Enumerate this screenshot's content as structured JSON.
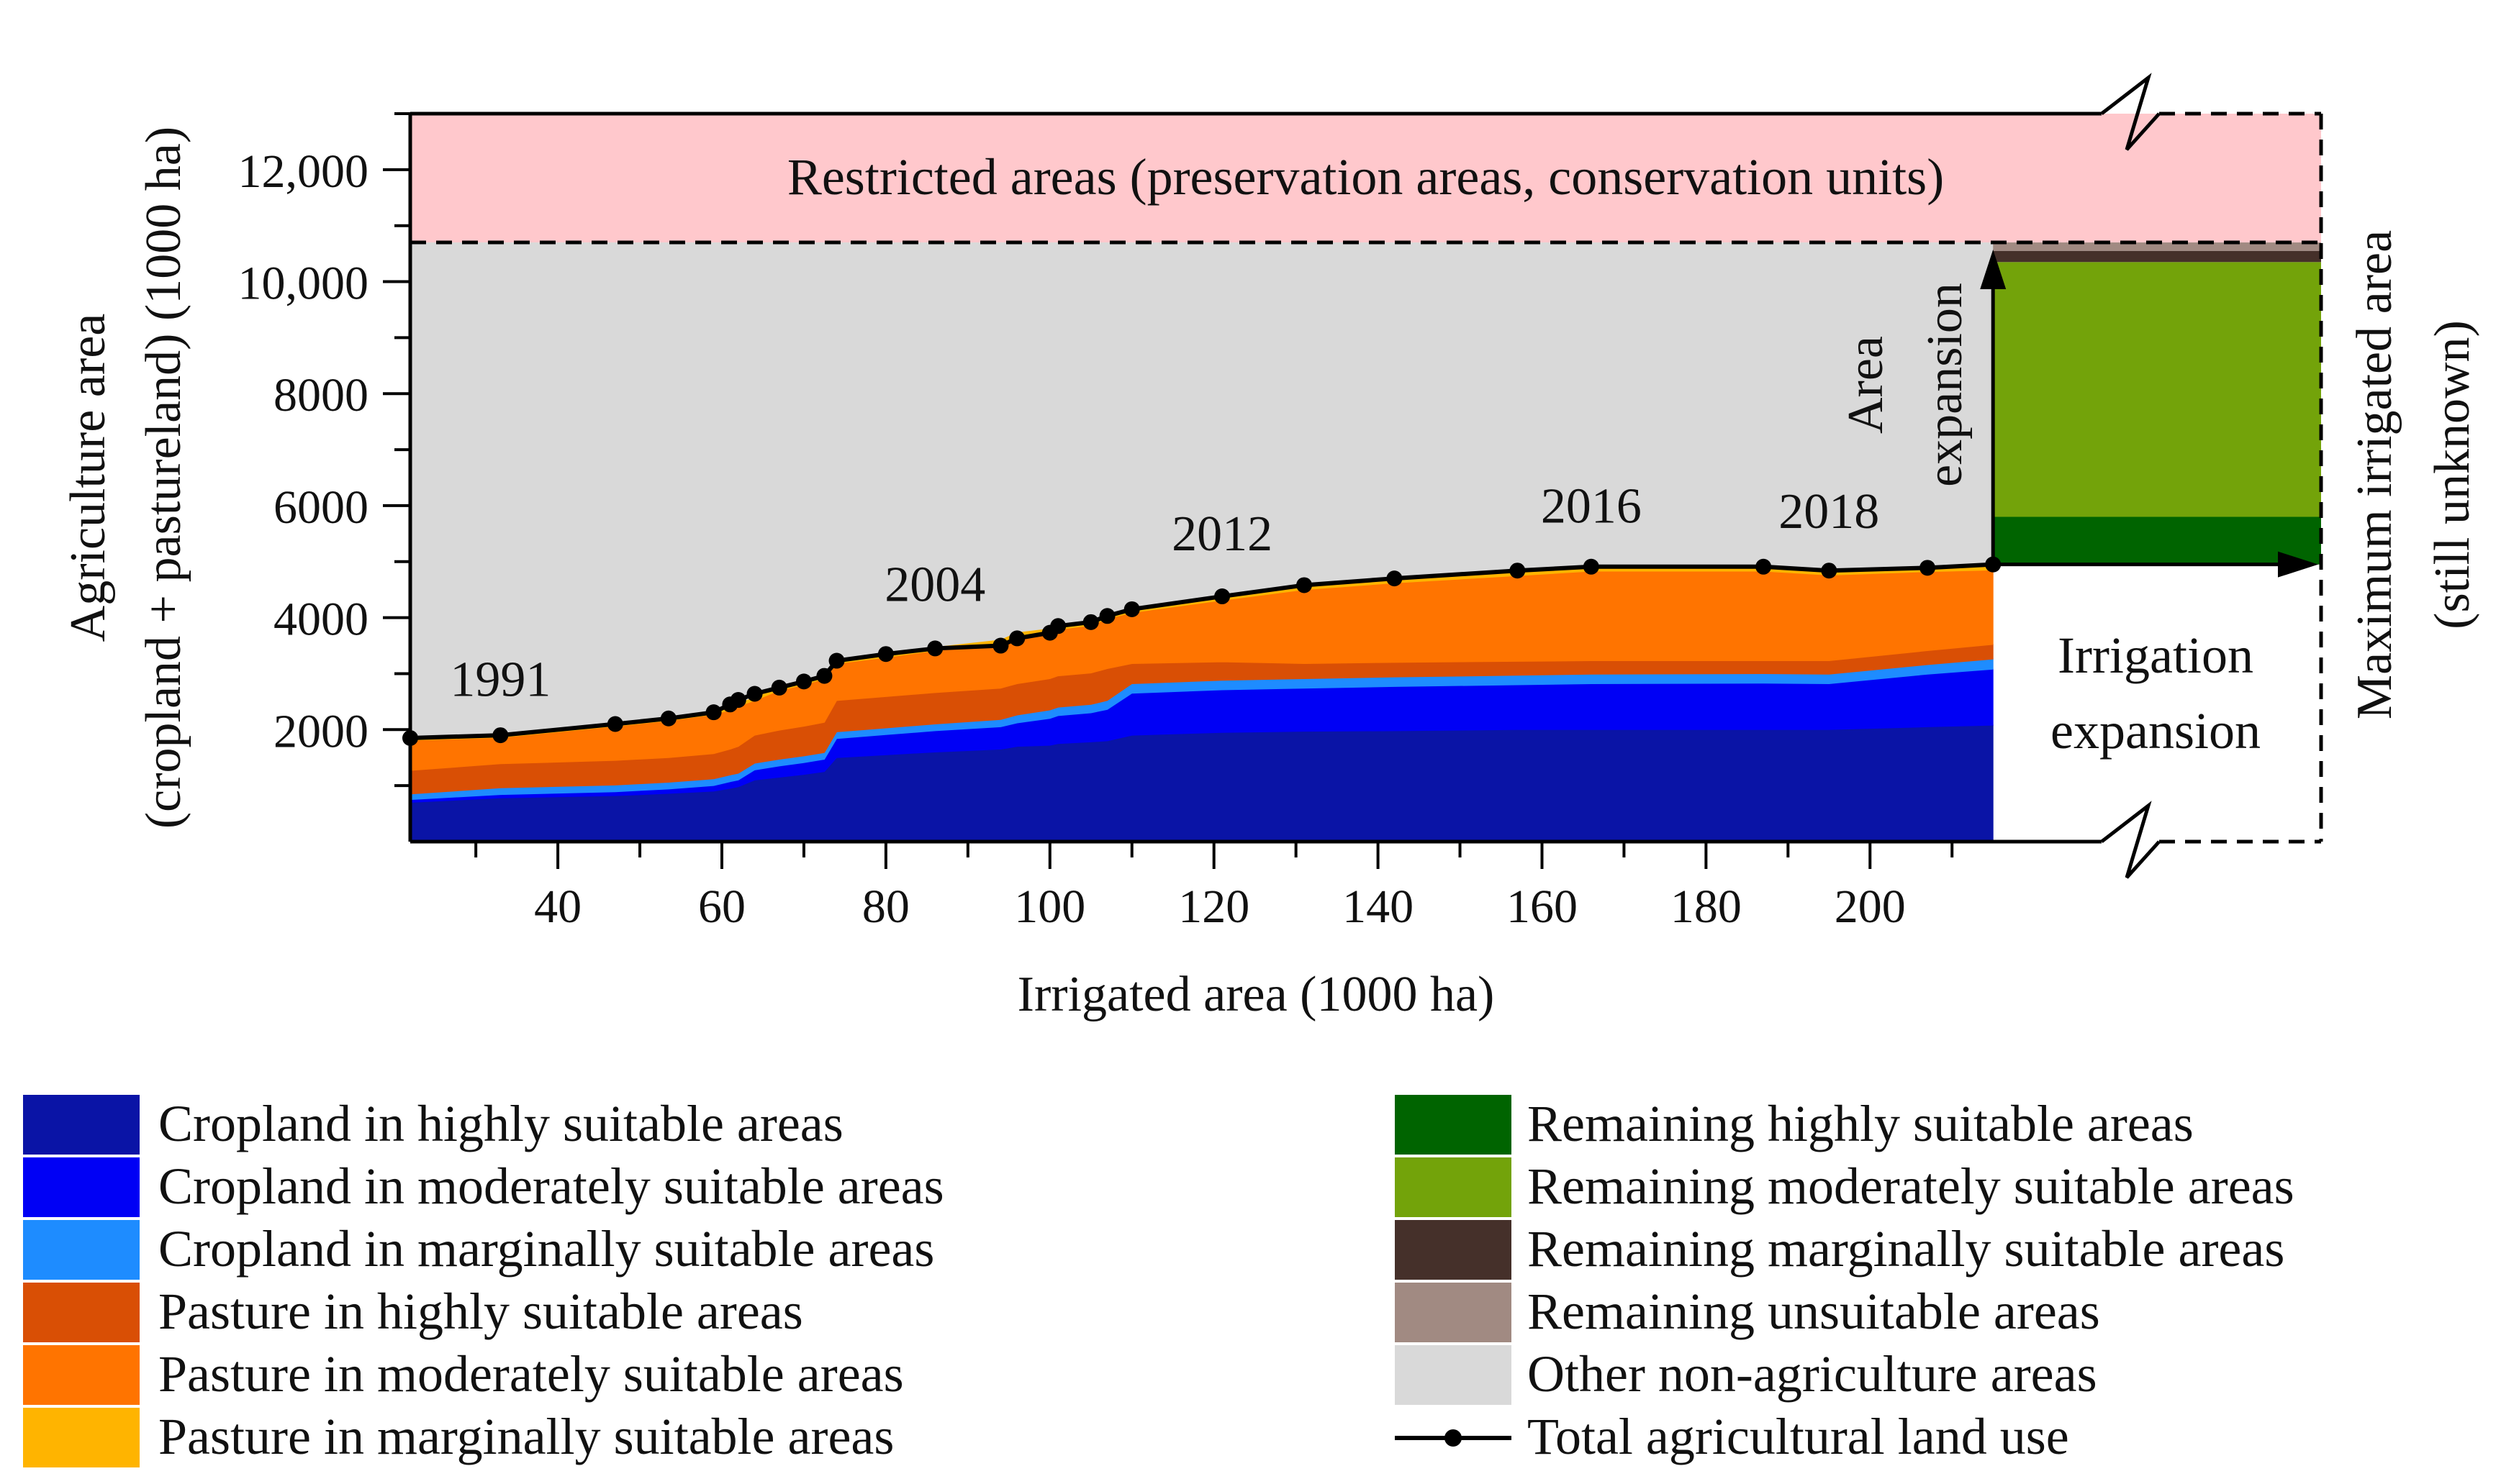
{
  "chart_data": {
    "type": "area",
    "xlabel": "Irrigated area (1000 ha)",
    "ylabel_line1": "Agriculture area",
    "ylabel_line2": "(cropland + pastureland) (1000 ha)",
    "xlim": [
      22,
      255
    ],
    "ylim": [
      0,
      13000
    ],
    "x_ticks": [
      40,
      60,
      80,
      100,
      120,
      140,
      160,
      180,
      200
    ],
    "y_ticks": [
      {
        "value": 2000,
        "label": "2000"
      },
      {
        "value": 4000,
        "label": "4000"
      },
      {
        "value": 6000,
        "label": "6000"
      },
      {
        "value": 8000,
        "label": "8000"
      },
      {
        "value": 10000,
        "label": "10,000"
      },
      {
        "value": 12000,
        "label": "12,000"
      }
    ],
    "restricted_threshold": 10700,
    "x": [
      22,
      33,
      47,
      53.5,
      59,
      61,
      62,
      64,
      67,
      70,
      72.5,
      74,
      80,
      86,
      94,
      96,
      100,
      101,
      105,
      107,
      110,
      121,
      131,
      142,
      157,
      166,
      187,
      195,
      207,
      215
    ],
    "series": [
      {
        "name": "Cropland in highly suitable areas",
        "color": "#0a14a6",
        "values": [
          700,
          780,
          820,
          860,
          900,
          950,
          980,
          1100,
          1150,
          1200,
          1250,
          1500,
          1550,
          1600,
          1650,
          1700,
          1720,
          1750,
          1780,
          1800,
          1900,
          1950,
          1970,
          1980,
          2000,
          2000,
          2000,
          2000,
          2050,
          2080
        ]
      },
      {
        "name": "Cropland in moderately suitable areas",
        "color": "#0000f5",
        "values": [
          50,
          60,
          70,
          80,
          100,
          120,
          120,
          180,
          200,
          210,
          220,
          340,
          360,
          380,
          400,
          420,
          480,
          500,
          520,
          560,
          750,
          760,
          770,
          790,
          800,
          820,
          830,
          820,
          940,
          1000
        ]
      },
      {
        "name": "Cropland in marginally suitable areas",
        "color": "#1e8cff",
        "values": [
          100,
          120,
          120,
          120,
          120,
          120,
          120,
          120,
          120,
          120,
          120,
          120,
          120,
          120,
          130,
          140,
          150,
          150,
          150,
          160,
          170,
          170,
          170,
          170,
          170,
          170,
          170,
          170,
          170,
          180
        ]
      },
      {
        "name": "Pasture in highly suitable areas",
        "color": "#d94f05",
        "values": [
          420,
          430,
          440,
          440,
          450,
          460,
          480,
          500,
          520,
          530,
          540,
          560,
          560,
          560,
          560,
          560,
          560,
          560,
          560,
          570,
          360,
          330,
          270,
          260,
          250,
          240,
          230,
          240,
          250,
          260
        ]
      },
      {
        "name": "Pasture in moderately suitable areas",
        "color": "#ff7400",
        "values": [
          540,
          470,
          610,
          660,
          700,
          700,
          720,
          620,
          710,
          740,
          780,
          660,
          700,
          750,
          800,
          850,
          830,
          830,
          850,
          890,
          910,
          1100,
          1320,
          1420,
          1530,
          1600,
          1600,
          1530,
          1410,
          1330
        ]
      },
      {
        "name": "Pasture in marginally suitable areas",
        "color": "#ffb400",
        "values": [
          40,
          40,
          40,
          40,
          40,
          50,
          50,
          50,
          50,
          50,
          50,
          50,
          60,
          60,
          60,
          60,
          60,
          60,
          60,
          60,
          60,
          70,
          80,
          80,
          80,
          80,
          80,
          80,
          80,
          80
        ]
      }
    ],
    "total_agricultural_land_use": {
      "name": "Total agricultural land use",
      "values": [
        1850,
        1900,
        2100,
        2200,
        2310,
        2450,
        2530,
        2640,
        2750,
        2860,
        2960,
        3230,
        3350,
        3450,
        3500,
        3630,
        3730,
        3850,
        3920,
        4030,
        4150,
        4380,
        4580,
        4700,
        4840,
        4910,
        4910,
        4840,
        4890,
        4950
      ]
    },
    "year_labels": [
      {
        "label": "1991",
        "x": 33,
        "y": 2600
      },
      {
        "label": "2004",
        "x": 86,
        "y": 4300
      },
      {
        "label": "2012",
        "x": 121,
        "y": 5200
      },
      {
        "label": "2016",
        "x": 166,
        "y": 5700
      },
      {
        "label": "2018",
        "x": 195,
        "y": 5600
      }
    ],
    "remaining": {
      "base": 4950,
      "stack": [
        {
          "name": "Remaining highly suitable areas",
          "color": "#006400",
          "top": 5800
        },
        {
          "name": "Remaining moderately suitable areas",
          "color": "#73a30a",
          "top": 10350
        },
        {
          "name": "Remaining marginally suitable areas",
          "color": "#45302a",
          "top": 10550
        },
        {
          "name": "Remaining unsuitable areas",
          "color": "#a18a82",
          "top": 10700
        }
      ]
    },
    "other_non_agriculture": {
      "name": "Other non-agriculture areas",
      "color": "#d9d9d9"
    },
    "restricted": {
      "label": "Restricted areas (preservation areas, conservation units)",
      "color": "#ffc8cc"
    },
    "annotations": {
      "area_expansion_1": "Area",
      "area_expansion_2": "expansion",
      "irrigation_expansion_1": "Irrigation",
      "irrigation_expansion_2": "expansion",
      "max_irrigated_1": "Maximum irrigated area",
      "max_irrigated_2": "(still unknown)"
    },
    "legend_left": [
      {
        "label": "Cropland in highly suitable areas",
        "color": "#0a14a6"
      },
      {
        "label": "Cropland in moderately suitable areas",
        "color": "#0000f5"
      },
      {
        "label": "Cropland in marginally suitable areas",
        "color": "#1e8cff"
      },
      {
        "label": "Pasture in highly suitable areas",
        "color": "#d94f05"
      },
      {
        "label": "Pasture in moderately suitable areas",
        "color": "#ff7400"
      },
      {
        "label": "Pasture in marginally suitable areas",
        "color": "#ffb400"
      }
    ],
    "legend_right": [
      {
        "label": "Remaining highly suitable areas",
        "color": "#006400"
      },
      {
        "label": "Remaining moderately suitable areas",
        "color": "#73a30a"
      },
      {
        "label": "Remaining marginally suitable areas",
        "color": "#45302a"
      },
      {
        "label": "Remaining unsuitable areas",
        "color": "#a18a82"
      },
      {
        "label": "Other non-agriculture areas",
        "color": "#d9d9d9"
      },
      {
        "label": "Total agricultural land use",
        "color": "#000000",
        "marker": "line-dot"
      }
    ]
  }
}
